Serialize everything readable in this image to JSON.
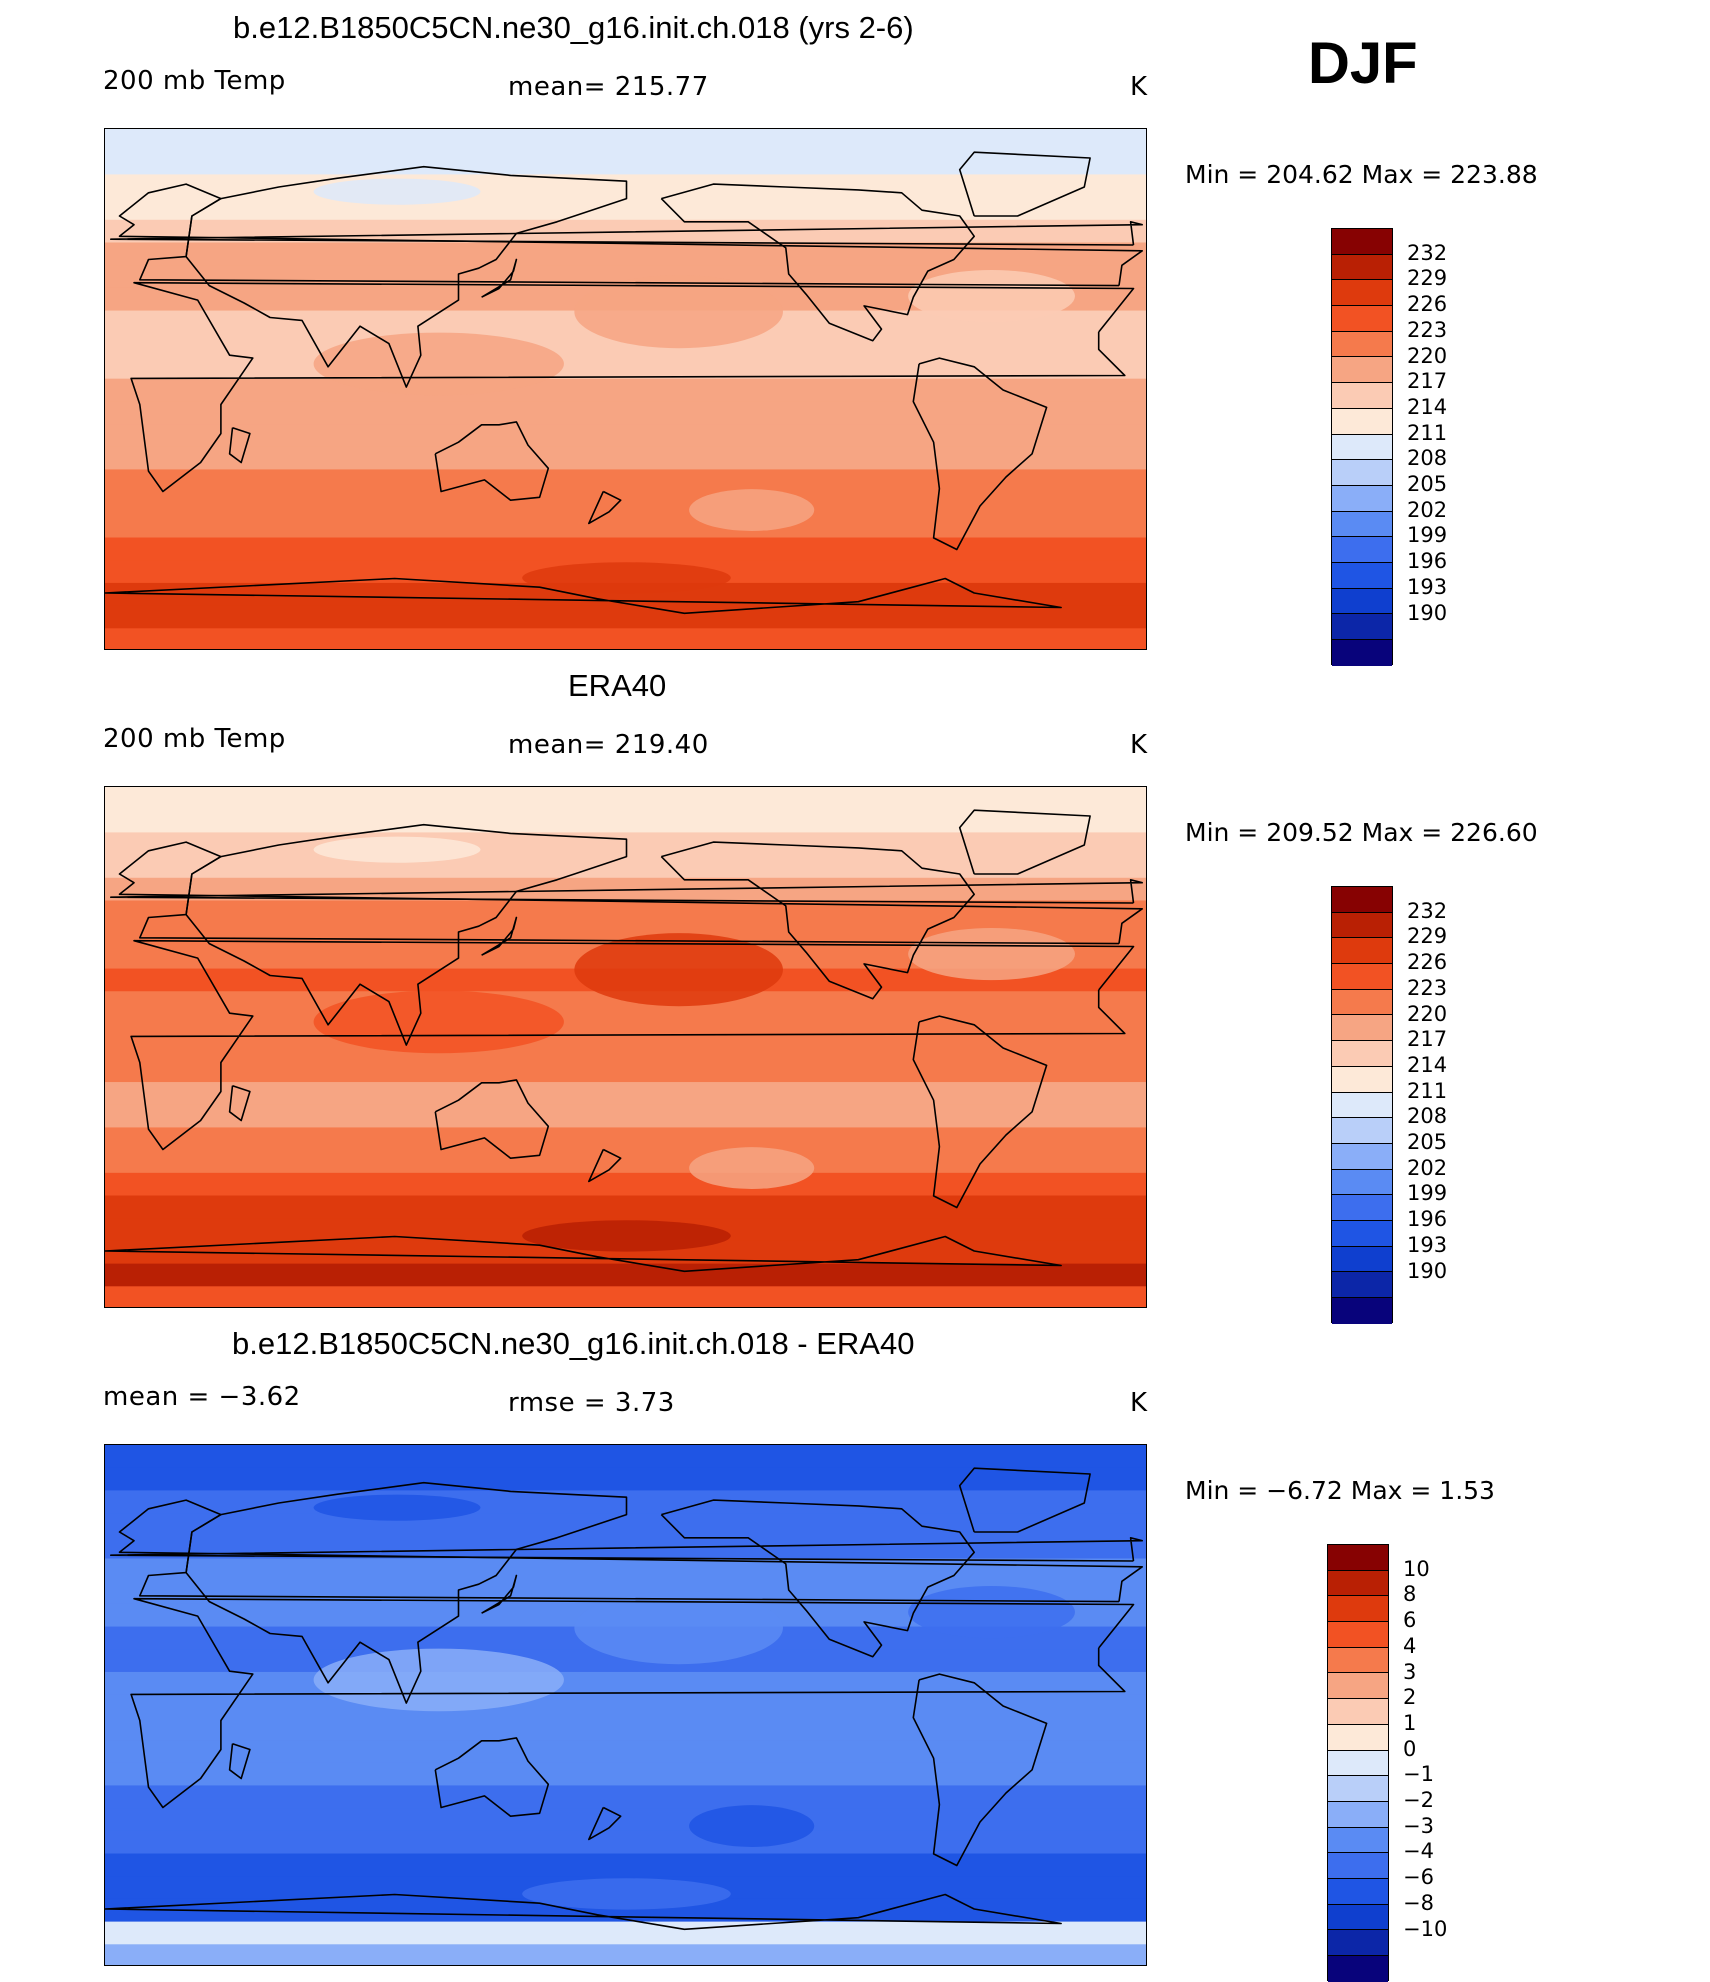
{
  "figure": {
    "season": "DJF",
    "variable_label": "200 mb Temp",
    "units": "K"
  },
  "chart_data": [
    {
      "type": "heatmap",
      "panel": "model",
      "title": "b.e12.B1850C5CN.ne30_g16.init.ch.018 (yrs 2-6)",
      "left_label": "200 mb Temp",
      "center_label": "mean=  215.77",
      "right_label": "K",
      "mean": 215.77,
      "min_label": "Min  =  204.62  Max  =  223.88",
      "min": 204.62,
      "max": 223.88,
      "levels": [
        "190",
        "193",
        "196",
        "199",
        "202",
        "205",
        "208",
        "211",
        "214",
        "217",
        "220",
        "223",
        "226",
        "229",
        "232"
      ],
      "colors": [
        "#08037b",
        "#0c26a8",
        "#0f3fcf",
        "#1f55e4",
        "#3d6eee",
        "#5a8bf3",
        "#8aaef8",
        "#b9cff9",
        "#dde9fa",
        "#fde9d8",
        "#fbcbb4",
        "#f6a583",
        "#f57a4c",
        "#f25223",
        "#de3a0d",
        "#b92004",
        "#870202"
      ],
      "band_latitude_profile": [
        8,
        8,
        9,
        9,
        10,
        11,
        11,
        11,
        10,
        10,
        10,
        11,
        11,
        11,
        11,
        12,
        12,
        12,
        13,
        13,
        14,
        14,
        13
      ]
    },
    {
      "type": "heatmap",
      "panel": "observations",
      "title": "ERA40",
      "left_label": "200 mb Temp",
      "center_label": "mean=  219.40",
      "right_label": "K",
      "mean": 219.4,
      "min_label": "Min  =  209.52  Max  =  226.60",
      "min": 209.52,
      "max": 226.6,
      "levels": [
        "190",
        "193",
        "196",
        "199",
        "202",
        "205",
        "208",
        "211",
        "214",
        "217",
        "220",
        "223",
        "226",
        "229",
        "232"
      ],
      "colors": [
        "#08037b",
        "#0c26a8",
        "#0f3fcf",
        "#1f55e4",
        "#3d6eee",
        "#5a8bf3",
        "#8aaef8",
        "#b9cff9",
        "#dde9fa",
        "#fde9d8",
        "#fbcbb4",
        "#f6a583",
        "#f57a4c",
        "#f25223",
        "#de3a0d",
        "#b92004",
        "#870202"
      ],
      "band_latitude_profile": [
        9,
        9,
        10,
        10,
        11,
        12,
        12,
        12,
        13,
        12,
        12,
        12,
        12,
        11,
        11,
        12,
        12,
        13,
        14,
        14,
        14,
        15,
        13
      ]
    },
    {
      "type": "heatmap",
      "panel": "difference",
      "title": "b.e12.B1850C5CN.ne30_g16.init.ch.018 - ERA40",
      "left_label": "mean  =     −3.62",
      "center_label": "rmse  =      3.73",
      "right_label": "K",
      "mean": -3.62,
      "rmse": 3.73,
      "min_label": "Min  =     −6.72  Max  =      1.53",
      "min": -6.72,
      "max": 1.53,
      "levels": [
        "−10",
        "−8",
        "−6",
        "−4",
        "−3",
        "−2",
        "−1",
        "0",
        "1",
        "2",
        "3",
        "4",
        "6",
        "8",
        "10"
      ],
      "colors": [
        "#08037b",
        "#0c26a8",
        "#0f3fcf",
        "#1f55e4",
        "#3d6eee",
        "#5a8bf3",
        "#8aaef8",
        "#b9cff9",
        "#dde9fa",
        "#fde9d8",
        "#fbcbb4",
        "#f6a583",
        "#f57a4c",
        "#f25223",
        "#de3a0d",
        "#b92004",
        "#870202"
      ],
      "band_latitude_profile": [
        3,
        3,
        4,
        4,
        4,
        5,
        5,
        5,
        4,
        4,
        5,
        5,
        5,
        5,
        5,
        4,
        4,
        4,
        3,
        3,
        3,
        8,
        6
      ]
    }
  ]
}
